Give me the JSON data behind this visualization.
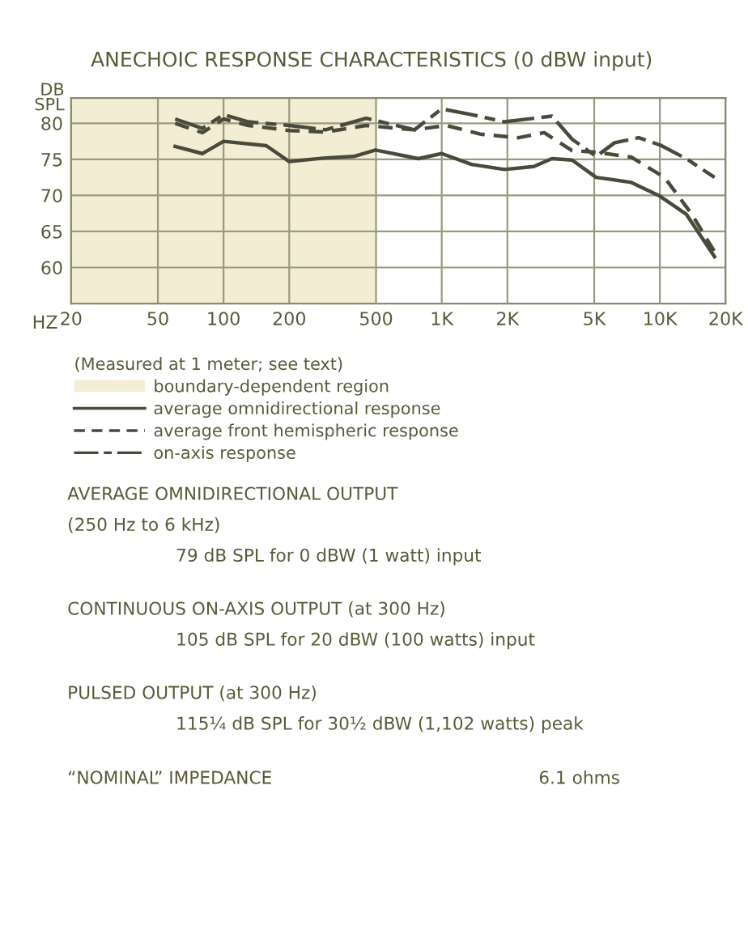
{
  "chart_data": {
    "type": "line",
    "title": "ANECHOIC RESPONSE CHARACTERISTICS (0 dBW input)",
    "xlabel": "HZ",
    "ylabel": "DB\nSPL",
    "legend_title": "(Measured at 1 meter; see text)",
    "log": "x",
    "xlim": [
      20,
      20000
    ],
    "xticks": [
      20,
      50,
      100,
      200,
      500,
      {
        "value": 1000,
        "label": "1K"
      },
      {
        "value": 2000,
        "label": "2K"
      },
      {
        "value": 5000,
        "label": "5K"
      },
      {
        "value": 10000,
        "label": "10K"
      },
      {
        "value": 20000,
        "label": "20K"
      }
    ],
    "ylim": [
      55,
      83.5
    ],
    "yticks": [
      60,
      65,
      70,
      75,
      80
    ],
    "grid": true,
    "legend": "bottom",
    "bands": [
      {
        "axis": "x",
        "from": 20,
        "to": 500,
        "label": "boundary-dependent region",
        "color": "#f3eed3"
      }
    ],
    "series": [
      {
        "name": "average omnidirectional response",
        "color": "#4a4a3c",
        "line_style": "solid",
        "x": [
          60,
          80,
          100,
          157,
          200,
          294,
          395,
          497,
          782,
          1000,
          1370,
          1940,
          2640,
          3200,
          3960,
          5100,
          7400,
          10000,
          13200,
          17800
        ],
        "values": [
          76.8,
          75.8,
          77.5,
          76.9,
          74.7,
          75.2,
          75.4,
          76.3,
          75.1,
          75.8,
          74.3,
          73.6,
          74,
          75.1,
          74.9,
          72.5,
          71.8,
          69.9,
          67.4,
          61.5
        ]
      },
      {
        "name": "average front hemispheric response",
        "color": "#4a4a3c",
        "line_style": "dashed",
        "x": [
          60,
          80,
          100,
          130,
          200,
          294,
          450,
          750,
          1050,
          1500,
          2250,
          2950,
          3960,
          5100,
          7400,
          10500,
          14000,
          17800
        ],
        "values": [
          80,
          78.7,
          80.6,
          79.7,
          79,
          78.8,
          79.7,
          79.1,
          79.7,
          78.5,
          78,
          78.7,
          76.2,
          76,
          75.3,
          72.5,
          67.4,
          62.2
        ]
      },
      {
        "name": "on-axis response",
        "color": "#4a4a3c",
        "line_style": "dashdot",
        "x": [
          60,
          80,
          100,
          130,
          200,
          294,
          450,
          750,
          1000,
          1370,
          1940,
          3200,
          3960,
          5100,
          6200,
          8000,
          10000,
          13200,
          17800
        ],
        "values": [
          80.6,
          79.3,
          81.2,
          80.2,
          79.7,
          79.1,
          80.7,
          79.1,
          82,
          81.2,
          80.2,
          81,
          77.8,
          75.4,
          77.3,
          78,
          77,
          75.1,
          72.5
        ]
      }
    ],
    "annotations": [
      "AVERAGE OMNIDIRECTIONAL OUTPUT",
      "(250 Hz to 6 kHz)",
      "79 dB SPL for 0 dBW (1 watt) input",
      "CONTINUOUS ON-AXIS OUTPUT (at 300 Hz)",
      "105 dB SPL for 20 dBW (100 watts) input",
      "PULSED OUTPUT (at 300 Hz)",
      "115¼ dB SPL for 30½ dBW (1,102 watts) peak",
      "“NOMINAL” IMPEDANCE",
      "6.1 ohms"
    ]
  }
}
